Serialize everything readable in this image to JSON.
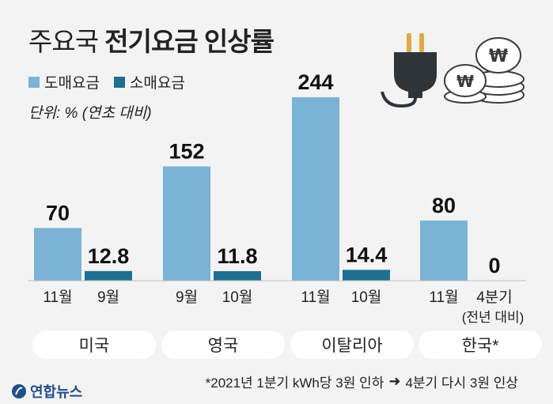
{
  "title": {
    "light": "주요국",
    "bold": "전기요금 인상률"
  },
  "unit": "단위: % (연초 대비)",
  "legend": [
    {
      "label": "도매요금",
      "color": "#7ab3d5"
    },
    {
      "label": "소매요금",
      "color": "#1e7091"
    }
  ],
  "chart_data": {
    "type": "bar",
    "title": "주요국 전기요금 인상률",
    "ylabel": "단위: % (연초 대비)",
    "ylim": [
      0,
      250
    ],
    "groups": [
      {
        "country": "미국",
        "bars": [
          {
            "series": "도매요금",
            "month": "11월",
            "value": 70,
            "label": "70"
          },
          {
            "series": "소매요금",
            "month": "9월",
            "value": 12.8,
            "label": "12.8"
          }
        ]
      },
      {
        "country": "영국",
        "bars": [
          {
            "series": "도매요금",
            "month": "9월",
            "value": 152,
            "label": "152"
          },
          {
            "series": "소매요금",
            "month": "10월",
            "value": 11.8,
            "label": "11.8"
          }
        ]
      },
      {
        "country": "이탈리아",
        "bars": [
          {
            "series": "도매요금",
            "month": "11월",
            "value": 244,
            "label": "244"
          },
          {
            "series": "소매요금",
            "month": "10월",
            "value": 14.4,
            "label": "14.4"
          }
        ]
      },
      {
        "country": "한국*",
        "bars": [
          {
            "series": "도매요금",
            "month": "11월",
            "value": 80,
            "label": "80"
          },
          {
            "series": "소매요금",
            "month": "4분기",
            "sublabel": "(전년 대비)",
            "value": 0,
            "label": "0"
          }
        ]
      }
    ]
  },
  "footnote": {
    "left": "*2021년 1분기 kWh당 3원 인하",
    "right": "4분기 다시 3원 인상"
  },
  "logo": "연합뉴스"
}
